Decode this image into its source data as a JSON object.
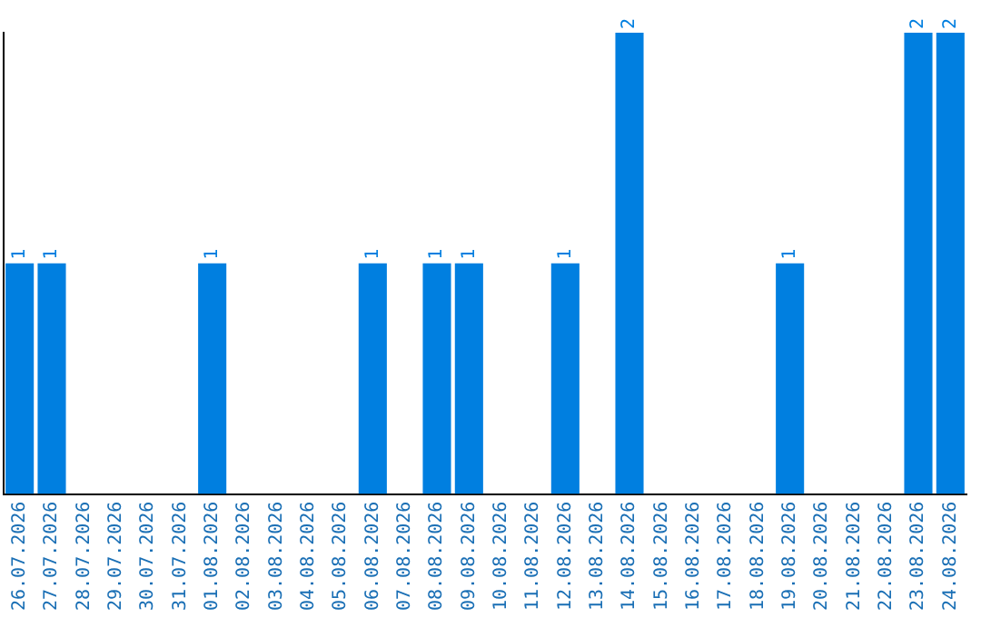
{
  "chart_data": {
    "type": "bar",
    "categories": [
      "26.07.2026",
      "27.07.2026",
      "28.07.2026",
      "29.07.2026",
      "30.07.2026",
      "31.07.2026",
      "01.08.2026",
      "02.08.2026",
      "03.08.2026",
      "04.08.2026",
      "05.08.2026",
      "06.08.2026",
      "07.08.2026",
      "08.08.2026",
      "09.08.2026",
      "10.08.2026",
      "11.08.2026",
      "12.08.2026",
      "13.08.2026",
      "14.08.2026",
      "15.08.2026",
      "16.08.2026",
      "17.08.2026",
      "18.08.2026",
      "19.08.2026",
      "20.08.2026",
      "21.08.2026",
      "22.08.2026",
      "23.08.2026",
      "24.08.2026"
    ],
    "values": [
      1,
      1,
      0,
      0,
      0,
      0,
      1,
      0,
      0,
      0,
      0,
      1,
      0,
      1,
      1,
      0,
      0,
      1,
      0,
      2,
      0,
      0,
      0,
      0,
      1,
      0,
      0,
      0,
      2,
      2
    ],
    "value_labels": [
      "1",
      "1",
      null,
      null,
      null,
      null,
      "1",
      null,
      null,
      null,
      null,
      "1",
      null,
      "1",
      "1",
      null,
      null,
      "1",
      null,
      "2",
      null,
      null,
      null,
      null,
      "1",
      null,
      null,
      null,
      "2",
      "2"
    ],
    "color": "#007fe0",
    "tick_labels": "x",
    "grid": false,
    "legend": false
  }
}
